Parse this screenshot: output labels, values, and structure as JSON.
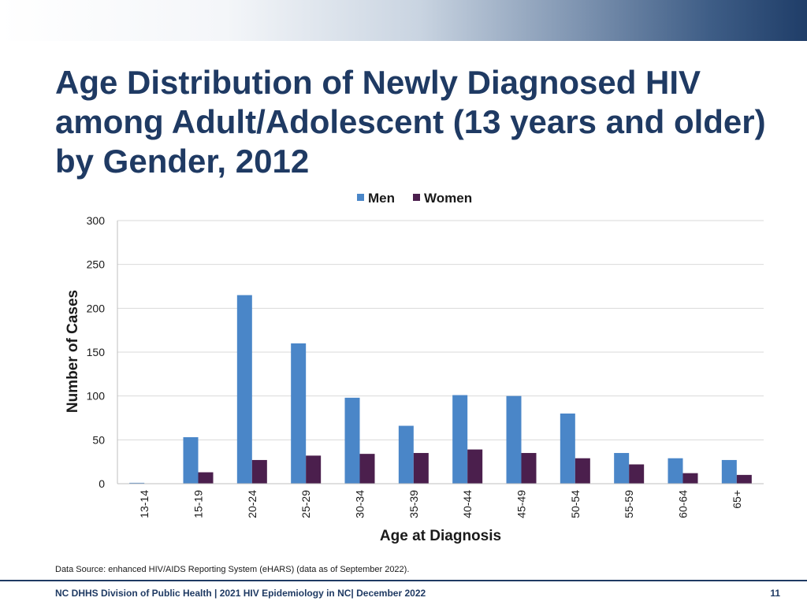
{
  "slide": {
    "title": "Age Distribution of Newly Diagnosed HIV among Adult/Adolescent (13 years and older) by Gender, 2012",
    "source": "Data Source: enhanced HIV/AIDS Reporting System (eHARS) (data as of September 2022).",
    "footer": "NC DHHS Division of Public Health | 2021 HIV Epidemiology in NC| December 2022",
    "page_number": "11"
  },
  "chart_data": {
    "type": "bar",
    "title": "",
    "xlabel": "Age at Diagnosis",
    "ylabel": "Number of Cases",
    "ylim": [
      0,
      300
    ],
    "yticks": [
      0,
      50,
      100,
      150,
      200,
      250,
      300
    ],
    "grid": true,
    "legend_position": "top-right",
    "categories": [
      "13-14",
      "15-19",
      "20-24",
      "25-29",
      "30-34",
      "35-39",
      "40-44",
      "45-49",
      "50-54",
      "55-59",
      "60-64",
      "65+"
    ],
    "series": [
      {
        "name": "Men",
        "color": "#4a86c8",
        "values": [
          1,
          53,
          215,
          160,
          98,
          66,
          101,
          100,
          80,
          35,
          29,
          27
        ]
      },
      {
        "name": "Women",
        "color": "#4b1f4d",
        "values": [
          0,
          13,
          27,
          32,
          34,
          35,
          39,
          35,
          29,
          22,
          12,
          10
        ]
      }
    ]
  }
}
